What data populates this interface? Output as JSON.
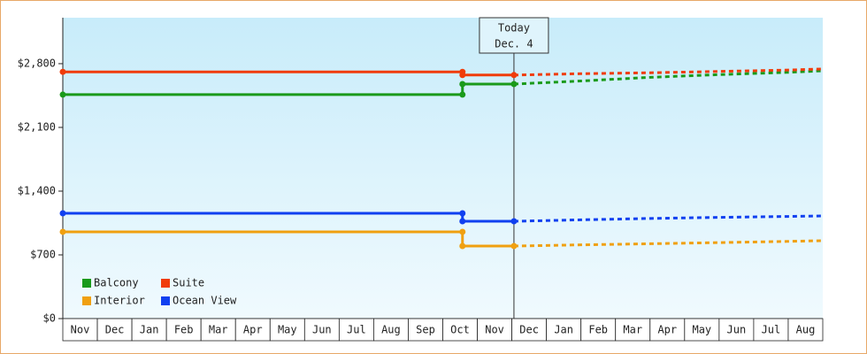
{
  "chart_data": {
    "type": "line",
    "categories": [
      "Nov",
      "Dec",
      "Jan",
      "Feb",
      "Mar",
      "Apr",
      "May",
      "Jun",
      "Jul",
      "Aug",
      "Sep",
      "Oct",
      "Nov",
      "Dec",
      "Jan",
      "Feb",
      "Mar",
      "Apr",
      "May",
      "Jun",
      "Jul",
      "Aug"
    ],
    "xlim": [
      0,
      22
    ],
    "x": [
      0,
      11.57,
      11.57,
      13.06
    ],
    "forecast_x": [
      13.06,
      15,
      17,
      19,
      21,
      22
    ],
    "ylim": [
      0,
      3305
    ],
    "yticks": [
      {
        "value": 0,
        "label": "$0"
      },
      {
        "value": 700,
        "label": "$700"
      },
      {
        "value": 1400,
        "label": "$1,400"
      },
      {
        "value": 2100,
        "label": "$2,100"
      },
      {
        "value": 2800,
        "label": "$2,800"
      }
    ],
    "today_x": 13.06,
    "annotation": [
      "Today",
      "Dec. 4"
    ],
    "legend": "lower-left",
    "series": [
      {
        "name": "Balcony",
        "color": "#1a9a1a",
        "values": [
          2460,
          2460,
          2576,
          2576
        ],
        "forecast_values": [
          2576,
          2610,
          2650,
          2680,
          2705,
          2722
        ]
      },
      {
        "name": "Suite",
        "color": "#f03c0a",
        "values": [
          2710,
          2710,
          2675,
          2675
        ],
        "forecast_values": [
          2675,
          2690,
          2700,
          2715,
          2730,
          2742
        ]
      },
      {
        "name": "Interior",
        "color": "#f0a010",
        "values": [
          953,
          953,
          797,
          797
        ],
        "forecast_values": [
          797,
          810,
          822,
          835,
          848,
          856
        ]
      },
      {
        "name": "Ocean View",
        "color": "#1040f0",
        "values": [
          1157,
          1157,
          1069,
          1069
        ],
        "forecast_values": [
          1069,
          1085,
          1100,
          1112,
          1122,
          1128
        ]
      }
    ]
  }
}
